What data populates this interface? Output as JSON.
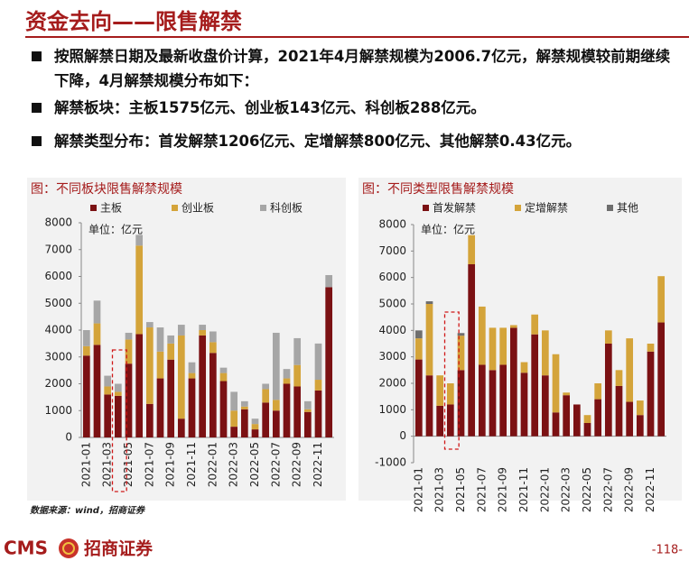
{
  "header": {
    "title": "资金去向——限售解禁"
  },
  "bullets": [
    "按照解禁日期及最新收盘价计算，2021年4月解禁规模为2006.7亿元，解禁规模较前期继续下降，4月解禁规模分布如下：",
    "解禁板块：主板1575亿元、创业板143亿元、科创板288亿元。",
    "解禁类型分布：首发解禁1206亿元、定增解禁800亿元、其他解禁0.43亿元。"
  ],
  "chart_data": [
    {
      "type": "bar",
      "stacked": true,
      "title": "图：不同板块限售解禁规模",
      "unit_label": "单位：亿元",
      "categories": [
        "2021-01",
        null,
        "2021-03",
        null,
        "2021-05",
        null,
        "2021-07",
        null,
        "2021-09",
        null,
        "2021-11",
        null,
        "2022-01",
        null,
        "2022-03",
        null,
        "2022-05",
        null,
        "2022-07",
        null,
        "2022-09",
        null,
        "2022-11",
        null
      ],
      "series": [
        {
          "name": "主板",
          "color": "#7b1113",
          "values": [
            3050,
            3450,
            1600,
            1550,
            2750,
            3850,
            1250,
            2200,
            2900,
            700,
            2200,
            3800,
            3150,
            2100,
            400,
            1050,
            300,
            1300,
            1000,
            2000,
            1900,
            950,
            1750,
            5600
          ]
        },
        {
          "name": "创业板",
          "color": "#d4a43a",
          "values": [
            350,
            800,
            300,
            150,
            900,
            3300,
            2850,
            1000,
            600,
            3100,
            200,
            200,
            400,
            300,
            600,
            100,
            200,
            500,
            400,
            200,
            800,
            100,
            400,
            0
          ]
        },
        {
          "name": "科创板",
          "color": "#a6a6a6",
          "values": [
            600,
            850,
            400,
            300,
            250,
            400,
            200,
            900,
            300,
            400,
            400,
            200,
            400,
            200,
            700,
            200,
            200,
            200,
            2500,
            350,
            1000,
            300,
            1350,
            450
          ]
        }
      ],
      "ylim": [
        0,
        8000
      ],
      "yticks": [
        0,
        1000,
        2000,
        3000,
        4000,
        5000,
        6000,
        7000,
        8000
      ],
      "legend": "top"
    },
    {
      "type": "bar",
      "stacked": true,
      "title": "图：不同类型限售解禁规模",
      "unit_label": "单位：亿元",
      "categories": [
        "2021-01",
        null,
        "2021-03",
        null,
        "2021-05",
        null,
        "2021-07",
        null,
        "2021-09",
        null,
        "2021-11",
        null,
        "2022-01",
        null,
        "2022-03",
        null,
        "2022-05",
        null,
        "2022-07",
        null,
        "2022-09",
        null,
        "2022-11",
        null
      ],
      "series": [
        {
          "name": "首发解禁",
          "color": "#7b1113",
          "values": [
            2900,
            2300,
            1150,
            1200,
            2500,
            6500,
            2700,
            2500,
            2700,
            4100,
            2400,
            3850,
            2300,
            900,
            1550,
            1200,
            500,
            1400,
            3500,
            1900,
            1300,
            800,
            3200,
            4300
          ]
        },
        {
          "name": "定增解禁",
          "color": "#d4a43a",
          "values": [
            800,
            2700,
            1150,
            800,
            1300,
            1100,
            2200,
            1600,
            1400,
            100,
            400,
            750,
            1700,
            2200,
            100,
            0,
            300,
            600,
            500,
            600,
            2400,
            550,
            300,
            1750
          ]
        },
        {
          "name": "其他",
          "color": "#6e6e6e",
          "values": [
            300,
            100,
            0,
            0,
            100,
            0,
            0,
            0,
            0,
            0,
            0,
            0,
            0,
            0,
            0,
            0,
            0,
            0,
            0,
            0,
            0,
            0,
            0,
            0
          ]
        }
      ],
      "ylim": [
        -1000,
        8000
      ],
      "yticks": [
        -1000,
        0,
        1000,
        2000,
        3000,
        4000,
        5000,
        6000,
        7000,
        8000
      ],
      "legend": "top"
    }
  ],
  "source": "数据来源：wind，招商证券",
  "footer": {
    "logo_text": "CMS",
    "brand": "招商证券",
    "page": "-118-"
  }
}
